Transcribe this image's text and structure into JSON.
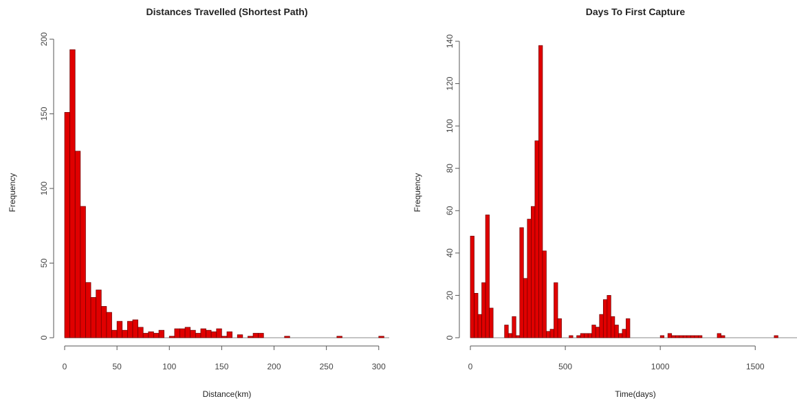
{
  "colors": {
    "bar_fill": "#e00000",
    "bar_stroke": "#6a0000",
    "axis": "#555555",
    "baseline": "#888888"
  },
  "chart_data": [
    {
      "type": "bar",
      "title": "Distances Travelled (Shortest Path)",
      "xlabel": "Distance(km)",
      "ylabel": "Frequency",
      "xlim": [
        0,
        310
      ],
      "ylim": [
        0,
        200
      ],
      "bin_width": 5,
      "bin_start": 0,
      "xticks": [
        0,
        50,
        100,
        150,
        200,
        250,
        300
      ],
      "yticks": [
        0,
        50,
        100,
        150,
        200
      ],
      "grid": false,
      "legend": "none",
      "values": [
        151,
        193,
        125,
        88,
        37,
        27,
        32,
        21,
        17,
        5,
        11,
        5,
        11,
        12,
        7,
        3,
        4,
        3,
        5,
        0,
        1,
        6,
        6,
        7,
        5,
        3,
        6,
        5,
        4,
        6,
        1,
        4,
        0,
        2,
        0,
        1,
        3,
        3,
        0,
        0,
        0,
        0,
        1,
        0,
        0,
        0,
        0,
        0,
        0,
        0,
        0,
        0,
        1,
        0,
        0,
        0,
        0,
        0,
        0,
        0,
        1,
        0
      ]
    },
    {
      "type": "bar",
      "title": "Days To First Capture",
      "xlabel": "Time(days)",
      "ylabel": "Frequency",
      "xlim": [
        0,
        1720
      ],
      "ylim": [
        0,
        140
      ],
      "bin_width": 20,
      "bin_start": 0,
      "xticks": [
        0,
        500,
        1000,
        1500
      ],
      "yticks": [
        0,
        20,
        40,
        60,
        80,
        100,
        120,
        140
      ],
      "grid": false,
      "legend": "none",
      "values": [
        48,
        21,
        11,
        26,
        58,
        14,
        0,
        0,
        0,
        6,
        2,
        10,
        1,
        52,
        28,
        56,
        62,
        93,
        138,
        41,
        3,
        4,
        26,
        9,
        0,
        0,
        1,
        0,
        1,
        2,
        2,
        2,
        6,
        5,
        11,
        18,
        20,
        10,
        6,
        2,
        4,
        9,
        0,
        0,
        0,
        0,
        0,
        0,
        0,
        0,
        1,
        0,
        2,
        1,
        1,
        1,
        1,
        1,
        1,
        1,
        1,
        0,
        0,
        0,
        0,
        2,
        1,
        0,
        0,
        0,
        0,
        0,
        0,
        0,
        0,
        0,
        0,
        0,
        0,
        0,
        1,
        0,
        0,
        0,
        0,
        0
      ]
    }
  ]
}
